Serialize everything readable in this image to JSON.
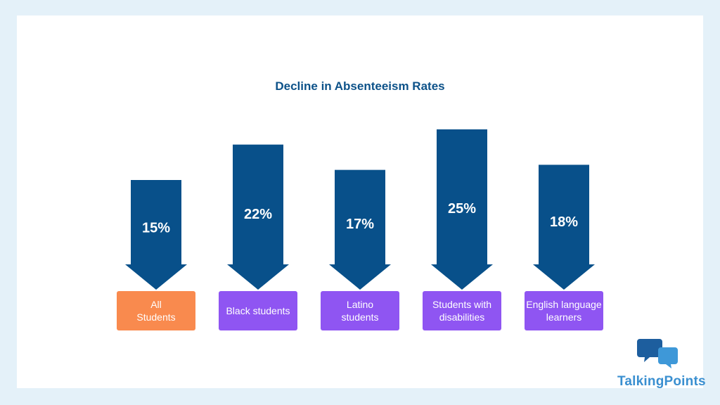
{
  "chart_data": {
    "type": "bar",
    "title": "Decline in Absenteeism Rates",
    "categories": [
      {
        "label_lines": [
          "All",
          "Students"
        ],
        "value": 15
      },
      {
        "label_lines": [
          "Black students"
        ],
        "value": 22
      },
      {
        "label_lines": [
          "Latino",
          "students"
        ],
        "value": 17
      },
      {
        "label_lines": [
          "Students with",
          "disabilities"
        ],
        "value": 25
      },
      {
        "label_lines": [
          "English language",
          "learners"
        ],
        "value": 18
      }
    ],
    "value_suffix": "%",
    "colors": {
      "arrow": "#08508a",
      "highlight_box": "#f98a4e",
      "box": "#8f55f2",
      "title": "#0d5289",
      "value_text": "#ffffff",
      "box_text": "#ffffff"
    }
  },
  "brand": {
    "name": "TalkingPoints",
    "icon": "speech-bubbles-icon",
    "colors": {
      "dark": "#1d5e9e",
      "light": "#3e98d8"
    }
  }
}
